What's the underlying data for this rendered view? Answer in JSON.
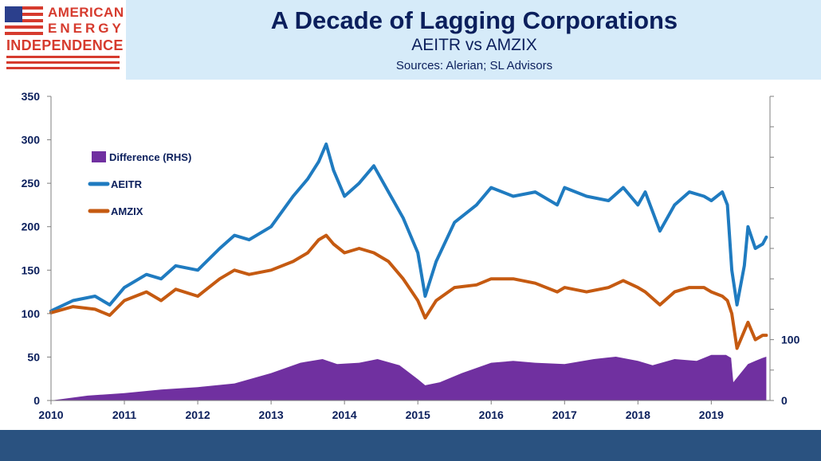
{
  "header": {
    "title": "A Decade of Lagging Corporations",
    "subtitle": "AEITR vs AMZIX",
    "sources": "Sources: Alerian; SL Advisors",
    "logo": {
      "line1": "AMERICAN",
      "line2": "ENERGY",
      "line3": "INDEPENDENCE"
    }
  },
  "colors": {
    "header_bg": "#d6ebf9",
    "title": "#0b1f5c",
    "logo_red": "#d63b2e",
    "aeitr": "#1f7bc0",
    "amzix": "#c55a11",
    "difference": "#7030a0",
    "footer": "#2a5280"
  },
  "chart_data": {
    "type": "line",
    "x_tick_labels": [
      "2010",
      "2011",
      "2012",
      "2013",
      "2014",
      "2015",
      "2016",
      "2017",
      "2018",
      "2019"
    ],
    "xlim": [
      2010.0,
      2019.8
    ],
    "ylim": [
      0,
      350
    ],
    "y_ticks": [
      "0",
      "50",
      "100",
      "150",
      "200",
      "250",
      "300",
      "350"
    ],
    "y2lim": [
      0,
      500
    ],
    "y2_ticks": [
      "0",
      "100"
    ],
    "legend_position": "top-left",
    "grid": false,
    "series": [
      {
        "name": "Difference (RHS)",
        "type": "area",
        "axis": "right",
        "x": [
          2010.0,
          2010.5,
          2011.0,
          2011.5,
          2012.0,
          2012.5,
          2013.0,
          2013.4,
          2013.7,
          2013.9,
          2014.2,
          2014.45,
          2014.75,
          2015.0,
          2015.1,
          2015.3,
          2015.6,
          2016.0,
          2016.3,
          2016.6,
          2017.0,
          2017.4,
          2017.7,
          2018.0,
          2018.2,
          2018.5,
          2018.8,
          2019.0,
          2019.2,
          2019.27,
          2019.3,
          2019.4,
          2019.5,
          2019.6,
          2019.7,
          2019.75
        ],
        "y": [
          0,
          8,
          12,
          18,
          22,
          28,
          45,
          62,
          68,
          60,
          62,
          68,
          58,
          35,
          25,
          30,
          45,
          62,
          65,
          62,
          60,
          68,
          72,
          65,
          58,
          68,
          65,
          75,
          75,
          70,
          30,
          45,
          60,
          65,
          70,
          72
        ]
      },
      {
        "name": "AEITR",
        "type": "line",
        "axis": "left",
        "x": [
          2010.0,
          2010.3,
          2010.6,
          2010.8,
          2011.0,
          2011.3,
          2011.5,
          2011.7,
          2012.0,
          2012.3,
          2012.5,
          2012.7,
          2013.0,
          2013.3,
          2013.5,
          2013.65,
          2013.75,
          2013.85,
          2014.0,
          2014.2,
          2014.4,
          2014.6,
          2014.8,
          2015.0,
          2015.1,
          2015.25,
          2015.5,
          2015.8,
          2016.0,
          2016.3,
          2016.6,
          2016.9,
          2017.0,
          2017.3,
          2017.6,
          2017.8,
          2018.0,
          2018.1,
          2018.3,
          2018.5,
          2018.7,
          2018.9,
          2019.0,
          2019.15,
          2019.22,
          2019.28,
          2019.35,
          2019.45,
          2019.5,
          2019.6,
          2019.7,
          2019.75
        ],
        "y": [
          103,
          115,
          120,
          110,
          130,
          145,
          140,
          155,
          150,
          175,
          190,
          185,
          200,
          235,
          255,
          275,
          295,
          265,
          235,
          250,
          270,
          240,
          210,
          170,
          120,
          160,
          205,
          225,
          245,
          235,
          240,
          225,
          245,
          235,
          230,
          245,
          225,
          240,
          195,
          225,
          240,
          235,
          230,
          240,
          225,
          150,
          110,
          155,
          200,
          175,
          180,
          188
        ]
      },
      {
        "name": "AMZIX",
        "type": "line",
        "axis": "left",
        "x": [
          2010.0,
          2010.3,
          2010.6,
          2010.8,
          2011.0,
          2011.3,
          2011.5,
          2011.7,
          2012.0,
          2012.3,
          2012.5,
          2012.7,
          2013.0,
          2013.3,
          2013.5,
          2013.65,
          2013.75,
          2013.85,
          2014.0,
          2014.2,
          2014.4,
          2014.6,
          2014.8,
          2015.0,
          2015.1,
          2015.25,
          2015.5,
          2015.8,
          2016.0,
          2016.3,
          2016.6,
          2016.9,
          2017.0,
          2017.3,
          2017.6,
          2017.8,
          2018.0,
          2018.1,
          2018.3,
          2018.5,
          2018.7,
          2018.9,
          2019.0,
          2019.15,
          2019.22,
          2019.28,
          2019.35,
          2019.45,
          2019.5,
          2019.6,
          2019.7,
          2019.75
        ],
        "y": [
          101,
          108,
          105,
          98,
          115,
          125,
          115,
          128,
          120,
          140,
          150,
          145,
          150,
          160,
          170,
          185,
          190,
          180,
          170,
          175,
          170,
          160,
          140,
          115,
          95,
          115,
          130,
          133,
          140,
          140,
          135,
          125,
          130,
          125,
          130,
          138,
          130,
          125,
          110,
          125,
          130,
          130,
          125,
          120,
          115,
          100,
          60,
          80,
          90,
          70,
          75,
          75
        ]
      }
    ]
  }
}
